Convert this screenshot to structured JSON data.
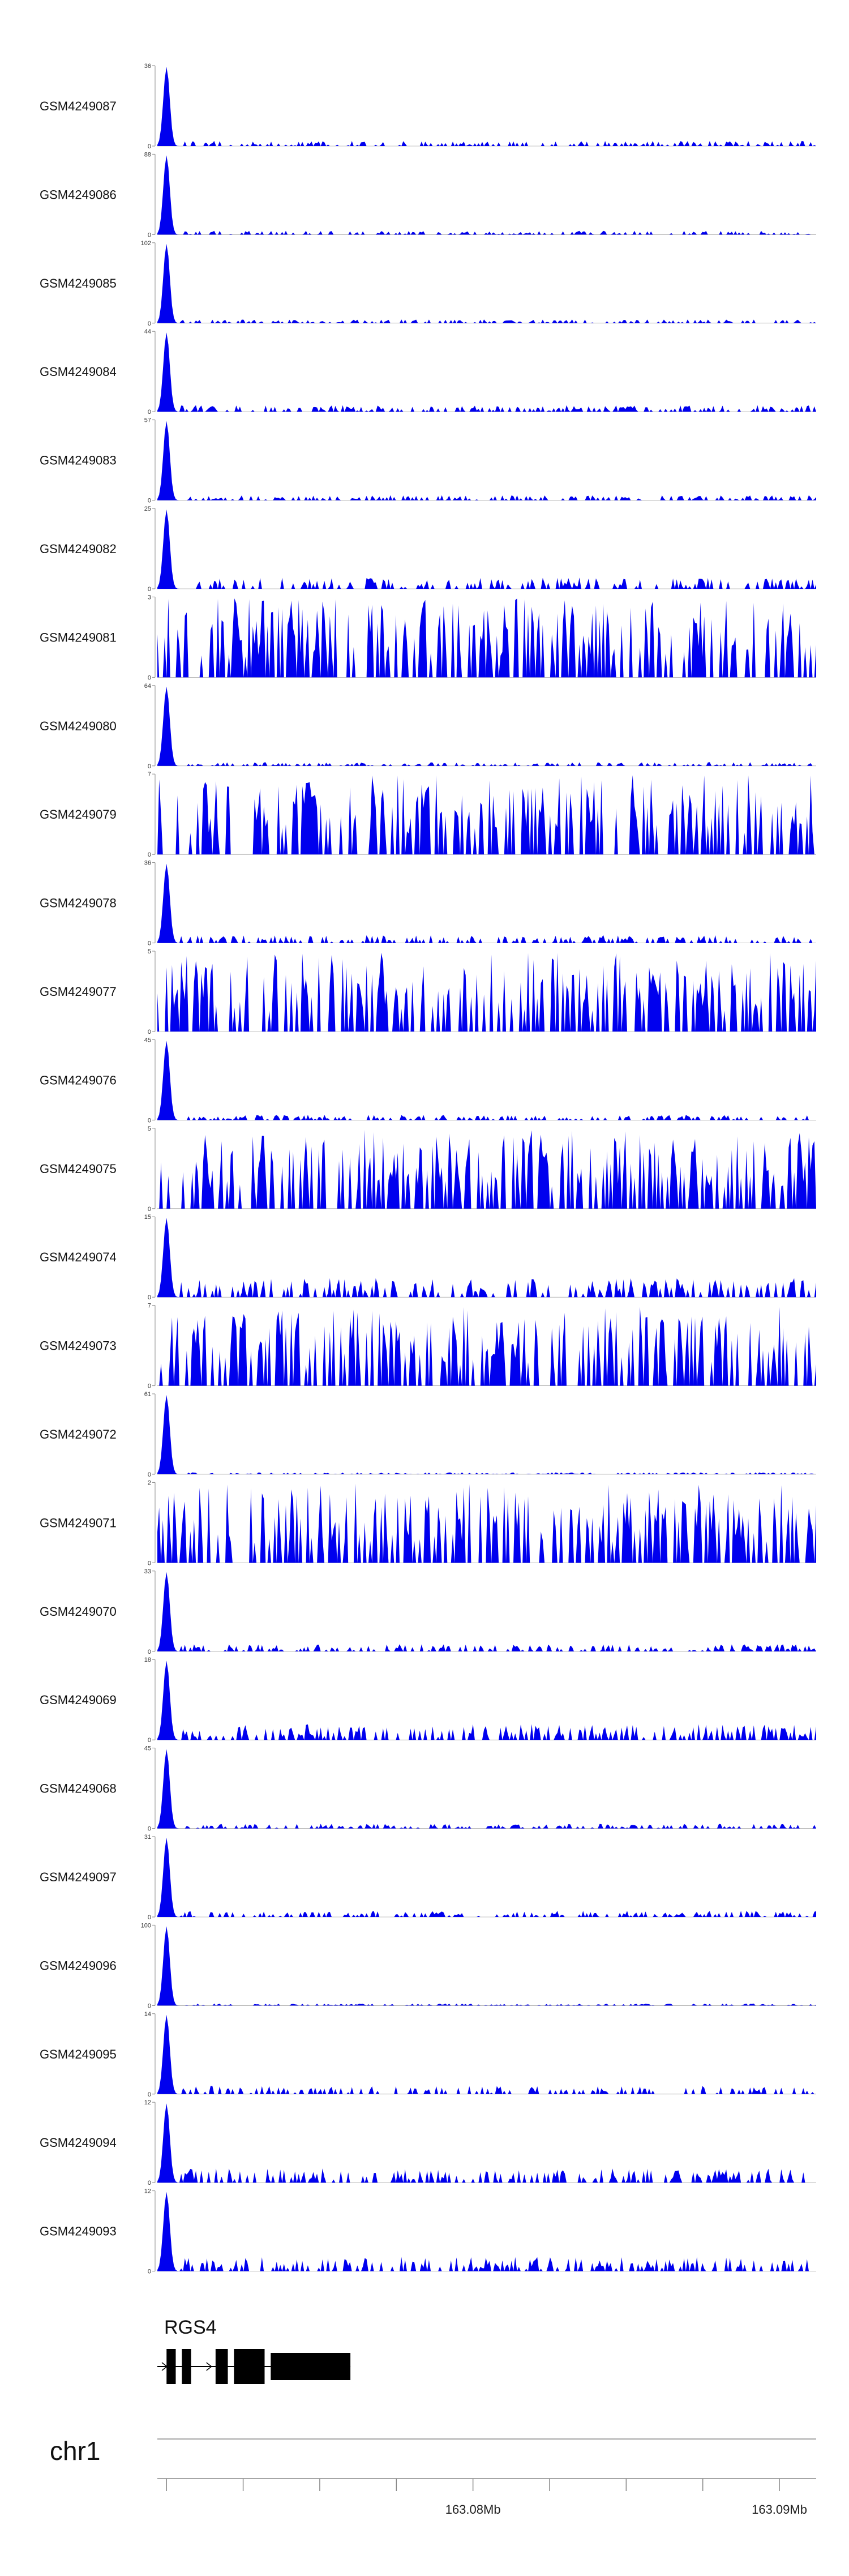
{
  "colors": {
    "coverage": "#0000ee",
    "axis": "#888888",
    "gene": "#000000"
  },
  "genome": {
    "chrom": "chr1",
    "start_mb": 163.0697,
    "end_mb": 163.0912
  },
  "ruler": {
    "minor_ticks_mb": [
      163.07,
      163.0725,
      163.075,
      163.0775,
      163.08,
      163.0825,
      163.085,
      163.0875,
      163.09
    ],
    "labeled_ticks": [
      {
        "mb": 163.08,
        "label": "163.08Mb"
      },
      {
        "mb": 163.09,
        "label": "163.09Mb"
      }
    ]
  },
  "gene": {
    "name": "RGS4",
    "strand": "+",
    "line_start_mb": 163.0697,
    "line_end_mb": 163.076,
    "exons_mb": [
      [
        163.07,
        163.0703
      ],
      [
        163.0705,
        163.0708
      ],
      [
        163.0716,
        163.072
      ],
      [
        163.0722,
        163.0732
      ],
      [
        163.0734,
        163.076
      ]
    ]
  },
  "tracks": [
    {
      "name": "GSM4249087",
      "ymax": "36",
      "shape": "p",
      "peak": 36,
      "base": 2.0,
      "seed": 11
    },
    {
      "name": "GSM4249086",
      "ymax": "88",
      "shape": "p",
      "peak": 88,
      "base": 3.5,
      "seed": 12
    },
    {
      "name": "GSM4249085",
      "ymax": "102",
      "shape": "p",
      "peak": 102,
      "base": 4.0,
      "seed": 13
    },
    {
      "name": "GSM4249084",
      "ymax": "44",
      "shape": "p",
      "peak": 44,
      "base": 3.0,
      "seed": 14
    },
    {
      "name": "GSM4249083",
      "ymax": "57",
      "shape": "p",
      "peak": 57,
      "base": 3.0,
      "seed": 15
    },
    {
      "name": "GSM4249082",
      "ymax": "25",
      "shape": "p",
      "peak": 25,
      "base": 3.0,
      "seed": 16
    },
    {
      "name": "GSM4249081",
      "ymax": "3",
      "shape": "s",
      "peak": 3,
      "base": 1.8,
      "seed": 17
    },
    {
      "name": "GSM4249080",
      "ymax": "64",
      "shape": "p",
      "peak": 64,
      "base": 2.5,
      "seed": 18
    },
    {
      "name": "GSM4249079",
      "ymax": "7",
      "shape": "s",
      "peak": 7,
      "base": 2.5,
      "seed": 19
    },
    {
      "name": "GSM4249078",
      "ymax": "36",
      "shape": "p",
      "peak": 36,
      "base": 3.0,
      "seed": 20
    },
    {
      "name": "GSM4249077",
      "ymax": "5",
      "shape": "s",
      "peak": 5,
      "base": 2.2,
      "seed": 21
    },
    {
      "name": "GSM4249076",
      "ymax": "45",
      "shape": "p",
      "peak": 45,
      "base": 2.5,
      "seed": 22
    },
    {
      "name": "GSM4249075",
      "ymax": "5",
      "shape": "s",
      "peak": 5,
      "base": 2.2,
      "seed": 23
    },
    {
      "name": "GSM4249074",
      "ymax": "15",
      "shape": "p",
      "peak": 15,
      "base": 3.0,
      "seed": 24
    },
    {
      "name": "GSM4249073",
      "ymax": "7",
      "shape": "s",
      "peak": 7,
      "base": 2.5,
      "seed": 25
    },
    {
      "name": "GSM4249072",
      "ymax": "61",
      "shape": "p",
      "peak": 61,
      "base": 1.2,
      "seed": 26
    },
    {
      "name": "GSM4249071",
      "ymax": "2",
      "shape": "s",
      "peak": 2,
      "base": 1.3,
      "seed": 27
    },
    {
      "name": "GSM4249070",
      "ymax": "33",
      "shape": "p",
      "peak": 33,
      "base": 2.5,
      "seed": 28
    },
    {
      "name": "GSM4249069",
      "ymax": "18",
      "shape": "p",
      "peak": 18,
      "base": 3.0,
      "seed": 29
    },
    {
      "name": "GSM4249068",
      "ymax": "45",
      "shape": "p",
      "peak": 45,
      "base": 2.2,
      "seed": 30
    },
    {
      "name": "GSM4249097",
      "ymax": "31",
      "shape": "p",
      "peak": 31,
      "base": 2.0,
      "seed": 31
    },
    {
      "name": "GSM4249096",
      "ymax": "100",
      "shape": "p",
      "peak": 100,
      "base": 2.0,
      "seed": 32
    },
    {
      "name": "GSM4249095",
      "ymax": "14",
      "shape": "p",
      "peak": 14,
      "base": 1.2,
      "seed": 33
    },
    {
      "name": "GSM4249094",
      "ymax": "12",
      "shape": "p",
      "peak": 12,
      "base": 1.8,
      "seed": 34
    },
    {
      "name": "GSM4249093",
      "ymax": "12",
      "shape": "p",
      "peak": 12,
      "base": 1.8,
      "seed": 35
    }
  ],
  "chart_data": {
    "type": "area",
    "xlim": [
      163.0697,
      163.0912
    ],
    "series": [
      {
        "name": "GSM4249087",
        "ylim": [
          0,
          36
        ]
      },
      {
        "name": "GSM4249086",
        "ylim": [
          0,
          88
        ]
      },
      {
        "name": "GSM4249085",
        "ylim": [
          0,
          102
        ]
      },
      {
        "name": "GSM4249084",
        "ylim": [
          0,
          44
        ]
      },
      {
        "name": "GSM4249083",
        "ylim": [
          0,
          57
        ]
      },
      {
        "name": "GSM4249082",
        "ylim": [
          0,
          25
        ]
      },
      {
        "name": "GSM4249081",
        "ylim": [
          0,
          3
        ]
      },
      {
        "name": "GSM4249080",
        "ylim": [
          0,
          64
        ]
      },
      {
        "name": "GSM4249079",
        "ylim": [
          0,
          7
        ]
      },
      {
        "name": "GSM4249078",
        "ylim": [
          0,
          36
        ]
      },
      {
        "name": "GSM4249077",
        "ylim": [
          0,
          5
        ]
      },
      {
        "name": "GSM4249076",
        "ylim": [
          0,
          45
        ]
      },
      {
        "name": "GSM4249075",
        "ylim": [
          0,
          5
        ]
      },
      {
        "name": "GSM4249074",
        "ylim": [
          0,
          15
        ]
      },
      {
        "name": "GSM4249073",
        "ylim": [
          0,
          7
        ]
      },
      {
        "name": "GSM4249072",
        "ylim": [
          0,
          61
        ]
      },
      {
        "name": "GSM4249071",
        "ylim": [
          0,
          2
        ]
      },
      {
        "name": "GSM4249070",
        "ylim": [
          0,
          33
        ]
      },
      {
        "name": "GSM4249069",
        "ylim": [
          0,
          18
        ]
      },
      {
        "name": "GSM4249068",
        "ylim": [
          0,
          45
        ]
      },
      {
        "name": "GSM4249097",
        "ylim": [
          0,
          31
        ]
      },
      {
        "name": "GSM4249096",
        "ylim": [
          0,
          100
        ]
      },
      {
        "name": "GSM4249095",
        "ylim": [
          0,
          14
        ]
      },
      {
        "name": "GSM4249094",
        "ylim": [
          0,
          12
        ]
      },
      {
        "name": "GSM4249093",
        "ylim": [
          0,
          12
        ]
      }
    ]
  }
}
